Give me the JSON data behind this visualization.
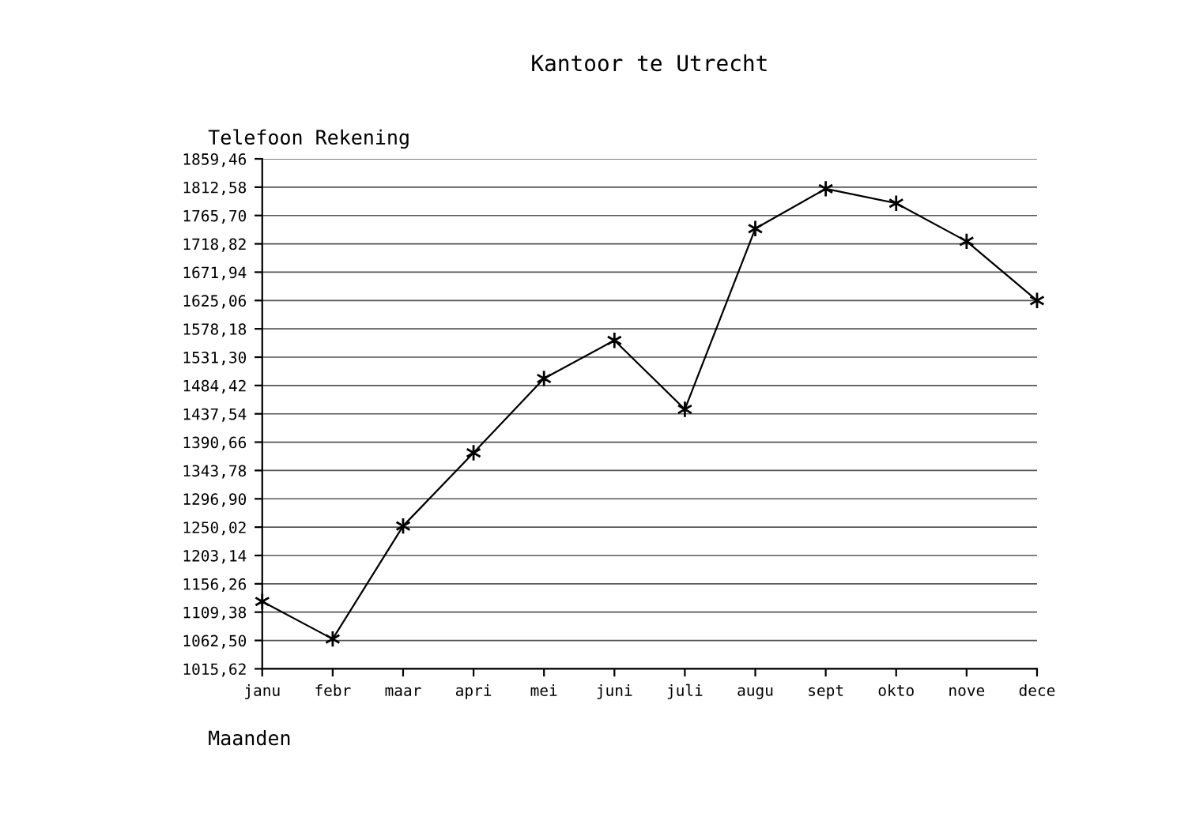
{
  "chart_data": {
    "type": "line",
    "title": "Kantoor te Utrecht",
    "ylabel": "Telefoon Rekening",
    "xlabel": "Maanden",
    "categories": [
      "janu",
      "febr",
      "maar",
      "apri",
      "mei",
      "juni",
      "juli",
      "augu",
      "sept",
      "okto",
      "nove",
      "dece"
    ],
    "series": [
      {
        "color": "#000000",
        "values": [
          1127,
          1065,
          1252,
          1373,
          1496,
          1559,
          1445,
          1744,
          1810,
          1786,
          1723,
          1625
        ]
      }
    ],
    "marker": "cross",
    "grid": "y",
    "legend": false,
    "ylim": [
      1015.62,
      1859.46
    ],
    "yticks": [
      {
        "value": 1015.62,
        "label": "1015,62"
      },
      {
        "value": 1062.5,
        "label": "1062,50"
      },
      {
        "value": 1109.38,
        "label": "1109,38"
      },
      {
        "value": 1156.26,
        "label": "1156,26"
      },
      {
        "value": 1203.14,
        "label": "1203,14"
      },
      {
        "value": 1250.02,
        "label": "1250,02"
      },
      {
        "value": 1296.9,
        "label": "1296,90"
      },
      {
        "value": 1343.78,
        "label": "1343,78"
      },
      {
        "value": 1390.66,
        "label": "1390,66"
      },
      {
        "value": 1437.54,
        "label": "1437,54"
      },
      {
        "value": 1484.42,
        "label": "1484,42"
      },
      {
        "value": 1531.3,
        "label": "1531,30"
      },
      {
        "value": 1578.18,
        "label": "1578,18"
      },
      {
        "value": 1625.06,
        "label": "1625,06"
      },
      {
        "value": 1671.94,
        "label": "1671,94"
      },
      {
        "value": 1718.82,
        "label": "1718,82"
      },
      {
        "value": 1765.7,
        "label": "1765,70"
      },
      {
        "value": 1812.58,
        "label": "1812,58"
      },
      {
        "value": 1859.46,
        "label": "1859,46"
      }
    ]
  }
}
